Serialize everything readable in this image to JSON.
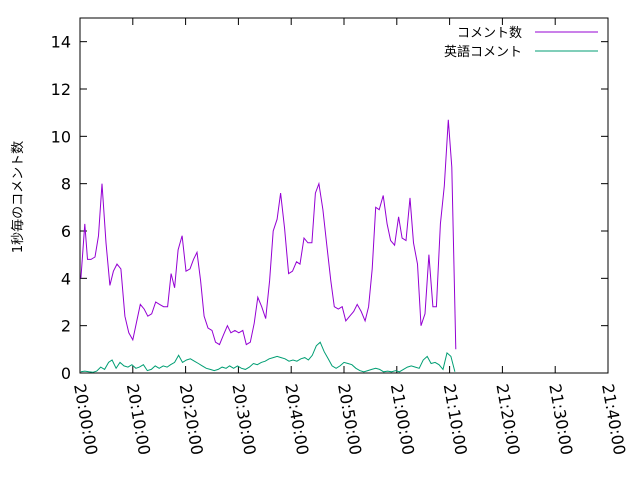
{
  "chart_data": {
    "type": "line",
    "ylabel": "1秒毎のコメント数",
    "xlabel": "",
    "title": "",
    "ylim": [
      0,
      15
    ],
    "y_ticks": [
      0,
      2,
      4,
      6,
      8,
      10,
      12,
      14
    ],
    "xlim": [
      "20:00:00",
      "21:40:00"
    ],
    "x_tick_labels": [
      "20:00:00",
      "20:10:00",
      "20:20:00",
      "20:30:00",
      "20:40:00",
      "20:50:00",
      "21:00:00",
      "21:10:00",
      "21:20:00",
      "21:30:00",
      "21:40:00"
    ],
    "grid": false,
    "legend_position": "top-right",
    "series": [
      {
        "name": "コメント数",
        "color": "#9400d3",
        "points": [
          [
            "20:00:10",
            4.0
          ],
          [
            "20:00:55",
            6.3
          ],
          [
            "20:01:25",
            4.8
          ],
          [
            "20:02:05",
            4.8
          ],
          [
            "20:02:50",
            4.9
          ],
          [
            "20:03:30",
            5.8
          ],
          [
            "20:04:10",
            8.0
          ],
          [
            "20:04:55",
            5.5
          ],
          [
            "20:05:40",
            3.7
          ],
          [
            "20:06:20",
            4.3
          ],
          [
            "20:07:00",
            4.6
          ],
          [
            "20:07:45",
            4.4
          ],
          [
            "20:08:30",
            2.4
          ],
          [
            "20:09:15",
            1.7
          ],
          [
            "20:10:00",
            1.4
          ],
          [
            "20:10:45",
            2.2
          ],
          [
            "20:11:25",
            2.9
          ],
          [
            "20:12:10",
            2.7
          ],
          [
            "20:12:50",
            2.4
          ],
          [
            "20:13:35",
            2.5
          ],
          [
            "20:14:20",
            3.0
          ],
          [
            "20:15:05",
            2.9
          ],
          [
            "20:15:50",
            2.8
          ],
          [
            "20:16:35",
            2.8
          ],
          [
            "20:17:15",
            4.2
          ],
          [
            "20:17:55",
            3.6
          ],
          [
            "20:18:35",
            5.2
          ],
          [
            "20:19:20",
            5.8
          ],
          [
            "20:20:05",
            4.3
          ],
          [
            "20:20:50",
            4.4
          ],
          [
            "20:21:30",
            4.8
          ],
          [
            "20:22:10",
            5.1
          ],
          [
            "20:22:50",
            3.9
          ],
          [
            "20:23:30",
            2.4
          ],
          [
            "20:24:15",
            1.9
          ],
          [
            "20:25:00",
            1.8
          ],
          [
            "20:25:40",
            1.3
          ],
          [
            "20:26:25",
            1.2
          ],
          [
            "20:27:10",
            1.6
          ],
          [
            "20:27:55",
            2.0
          ],
          [
            "20:28:35",
            1.7
          ],
          [
            "20:29:20",
            1.8
          ],
          [
            "20:30:05",
            1.7
          ],
          [
            "20:30:50",
            1.8
          ],
          [
            "20:31:30",
            1.2
          ],
          [
            "20:32:15",
            1.3
          ],
          [
            "20:33:00",
            2.1
          ],
          [
            "20:33:40",
            3.2
          ],
          [
            "20:34:25",
            2.8
          ],
          [
            "20:35:10",
            2.3
          ],
          [
            "20:35:55",
            3.9
          ],
          [
            "20:36:35",
            6.0
          ],
          [
            "20:37:20",
            6.5
          ],
          [
            "20:38:00",
            7.6
          ],
          [
            "20:38:45",
            6.1
          ],
          [
            "20:39:30",
            4.2
          ],
          [
            "20:40:15",
            4.3
          ],
          [
            "20:41:00",
            4.7
          ],
          [
            "20:41:40",
            4.6
          ],
          [
            "20:42:25",
            5.7
          ],
          [
            "20:43:10",
            5.5
          ],
          [
            "20:43:55",
            5.5
          ],
          [
            "20:44:35",
            7.6
          ],
          [
            "20:45:15",
            8.0
          ],
          [
            "20:46:00",
            6.9
          ],
          [
            "20:46:45",
            5.4
          ],
          [
            "20:47:30",
            3.9
          ],
          [
            "20:48:10",
            2.8
          ],
          [
            "20:48:55",
            2.7
          ],
          [
            "20:49:40",
            2.8
          ],
          [
            "20:50:20",
            2.2
          ],
          [
            "20:51:05",
            2.4
          ],
          [
            "20:51:50",
            2.6
          ],
          [
            "20:52:30",
            2.9
          ],
          [
            "20:53:15",
            2.6
          ],
          [
            "20:54:00",
            2.2
          ],
          [
            "20:54:40",
            2.8
          ],
          [
            "20:55:20",
            4.4
          ],
          [
            "20:56:00",
            7.0
          ],
          [
            "20:56:40",
            6.9
          ],
          [
            "20:57:25",
            7.5
          ],
          [
            "20:58:10",
            6.3
          ],
          [
            "20:58:50",
            5.6
          ],
          [
            "20:59:35",
            5.4
          ],
          [
            "21:00:20",
            6.6
          ],
          [
            "21:01:00",
            5.7
          ],
          [
            "21:01:45",
            5.6
          ],
          [
            "21:02:30",
            7.4
          ],
          [
            "21:03:10",
            5.5
          ],
          [
            "21:03:55",
            4.6
          ],
          [
            "21:04:35",
            2.0
          ],
          [
            "21:05:20",
            2.5
          ],
          [
            "21:06:05",
            5.0
          ],
          [
            "21:06:50",
            2.8
          ],
          [
            "21:07:30",
            2.8
          ],
          [
            "21:08:15",
            6.3
          ],
          [
            "21:09:00",
            7.9
          ],
          [
            "21:09:45",
            10.7
          ],
          [
            "21:10:25",
            8.7
          ],
          [
            "21:11:10",
            1.0
          ]
        ]
      },
      {
        "name": "英語コメント",
        "color": "#009e73",
        "points": [
          [
            "20:00:10",
            0.05
          ],
          [
            "20:00:55",
            0.08
          ],
          [
            "20:01:40",
            0.05
          ],
          [
            "20:02:25",
            0.03
          ],
          [
            "20:03:10",
            0.08
          ],
          [
            "20:03:55",
            0.25
          ],
          [
            "20:04:40",
            0.15
          ],
          [
            "20:05:25",
            0.45
          ],
          [
            "20:06:05",
            0.55
          ],
          [
            "20:06:50",
            0.2
          ],
          [
            "20:07:35",
            0.45
          ],
          [
            "20:08:20",
            0.3
          ],
          [
            "20:09:05",
            0.25
          ],
          [
            "20:09:50",
            0.35
          ],
          [
            "20:10:35",
            0.2
          ],
          [
            "20:11:15",
            0.25
          ],
          [
            "20:12:00",
            0.35
          ],
          [
            "20:12:45",
            0.1
          ],
          [
            "20:13:30",
            0.15
          ],
          [
            "20:14:15",
            0.3
          ],
          [
            "20:15:00",
            0.2
          ],
          [
            "20:15:45",
            0.3
          ],
          [
            "20:16:30",
            0.25
          ],
          [
            "20:17:10",
            0.35
          ],
          [
            "20:17:55",
            0.45
          ],
          [
            "20:18:40",
            0.75
          ],
          [
            "20:19:25",
            0.45
          ],
          [
            "20:20:10",
            0.55
          ],
          [
            "20:20:55",
            0.6
          ],
          [
            "20:21:40",
            0.5
          ],
          [
            "20:22:25",
            0.4
          ],
          [
            "20:23:10",
            0.3
          ],
          [
            "20:23:55",
            0.2
          ],
          [
            "20:24:40",
            0.15
          ],
          [
            "20:25:25",
            0.1
          ],
          [
            "20:26:10",
            0.15
          ],
          [
            "20:26:55",
            0.25
          ],
          [
            "20:27:40",
            0.2
          ],
          [
            "20:28:20",
            0.3
          ],
          [
            "20:29:05",
            0.2
          ],
          [
            "20:29:50",
            0.3
          ],
          [
            "20:30:35",
            0.2
          ],
          [
            "20:31:20",
            0.15
          ],
          [
            "20:32:05",
            0.25
          ],
          [
            "20:32:50",
            0.4
          ],
          [
            "20:33:35",
            0.35
          ],
          [
            "20:34:20",
            0.45
          ],
          [
            "20:35:05",
            0.5
          ],
          [
            "20:35:50",
            0.6
          ],
          [
            "20:36:35",
            0.65
          ],
          [
            "20:37:20",
            0.7
          ],
          [
            "20:38:05",
            0.65
          ],
          [
            "20:38:50",
            0.6
          ],
          [
            "20:39:35",
            0.5
          ],
          [
            "20:40:20",
            0.55
          ],
          [
            "20:41:05",
            0.5
          ],
          [
            "20:41:50",
            0.6
          ],
          [
            "20:42:35",
            0.65
          ],
          [
            "20:43:15",
            0.55
          ],
          [
            "20:44:00",
            0.75
          ],
          [
            "20:44:45",
            1.15
          ],
          [
            "20:45:30",
            1.3
          ],
          [
            "20:46:15",
            0.9
          ],
          [
            "20:47:00",
            0.6
          ],
          [
            "20:47:45",
            0.3
          ],
          [
            "20:48:30",
            0.2
          ],
          [
            "20:49:15",
            0.3
          ],
          [
            "20:50:00",
            0.45
          ],
          [
            "20:50:45",
            0.4
          ],
          [
            "20:51:30",
            0.35
          ],
          [
            "20:52:15",
            0.2
          ],
          [
            "20:53:00",
            0.1
          ],
          [
            "20:53:45",
            0.05
          ],
          [
            "20:54:30",
            0.1
          ],
          [
            "20:55:15",
            0.15
          ],
          [
            "20:56:00",
            0.2
          ],
          [
            "20:56:45",
            0.15
          ],
          [
            "20:57:30",
            0.05
          ],
          [
            "20:58:15",
            0.08
          ],
          [
            "20:59:00",
            0.05
          ],
          [
            "20:59:45",
            0.1
          ],
          [
            "21:00:30",
            0.05
          ],
          [
            "21:01:15",
            0.15
          ],
          [
            "21:02:00",
            0.25
          ],
          [
            "21:02:45",
            0.3
          ],
          [
            "21:03:30",
            0.25
          ],
          [
            "21:04:15",
            0.2
          ],
          [
            "21:05:00",
            0.55
          ],
          [
            "21:05:45",
            0.7
          ],
          [
            "21:06:30",
            0.4
          ],
          [
            "21:07:15",
            0.45
          ],
          [
            "21:08:00",
            0.35
          ],
          [
            "21:08:45",
            0.15
          ],
          [
            "21:09:30",
            0.85
          ],
          [
            "21:10:15",
            0.7
          ],
          [
            "21:11:00",
            0.05
          ]
        ]
      }
    ]
  }
}
